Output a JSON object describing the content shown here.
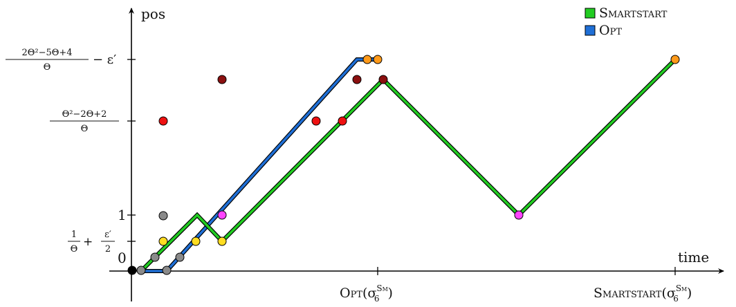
{
  "axes": {
    "y_label": "pos",
    "x_label": "time",
    "origin_label": "0"
  },
  "legend": [
    {
      "name": "Smartstart",
      "color": "#22cc22"
    },
    {
      "name": "Opt",
      "color": "#1f6fd6"
    }
  ],
  "y_ticks": {
    "t5": {
      "num": "2Θ²−5Θ+4",
      "den": "Θ",
      "suffix": "− ε′"
    },
    "t4": {
      "num": "Θ²−2Θ+2",
      "den": "Θ"
    },
    "t1": {
      "text": "1"
    },
    "t0": {
      "a_num": "1",
      "a_den": "Θ",
      "plus": "+",
      "b_num": "ε′",
      "b_den": "2"
    }
  },
  "x_ticks": {
    "opt": {
      "name": "Opt",
      "sym": "(σ",
      "sup": "Sm",
      "sub": "6",
      "close": ")"
    },
    "smart": {
      "name": "Smartstart",
      "sym": "(σ",
      "sup": "Sm",
      "sub": "6",
      "close": ")"
    }
  },
  "colors": {
    "smartstart": "#22cc22",
    "opt": "#1f6fd6",
    "black": "#000000",
    "gray": "#8a8a8a",
    "yellow": "#ffdd22",
    "magenta": "#ff44ff",
    "red": "#ee1111",
    "darkred": "#8b1010",
    "orange": "#ff9a1a"
  }
}
